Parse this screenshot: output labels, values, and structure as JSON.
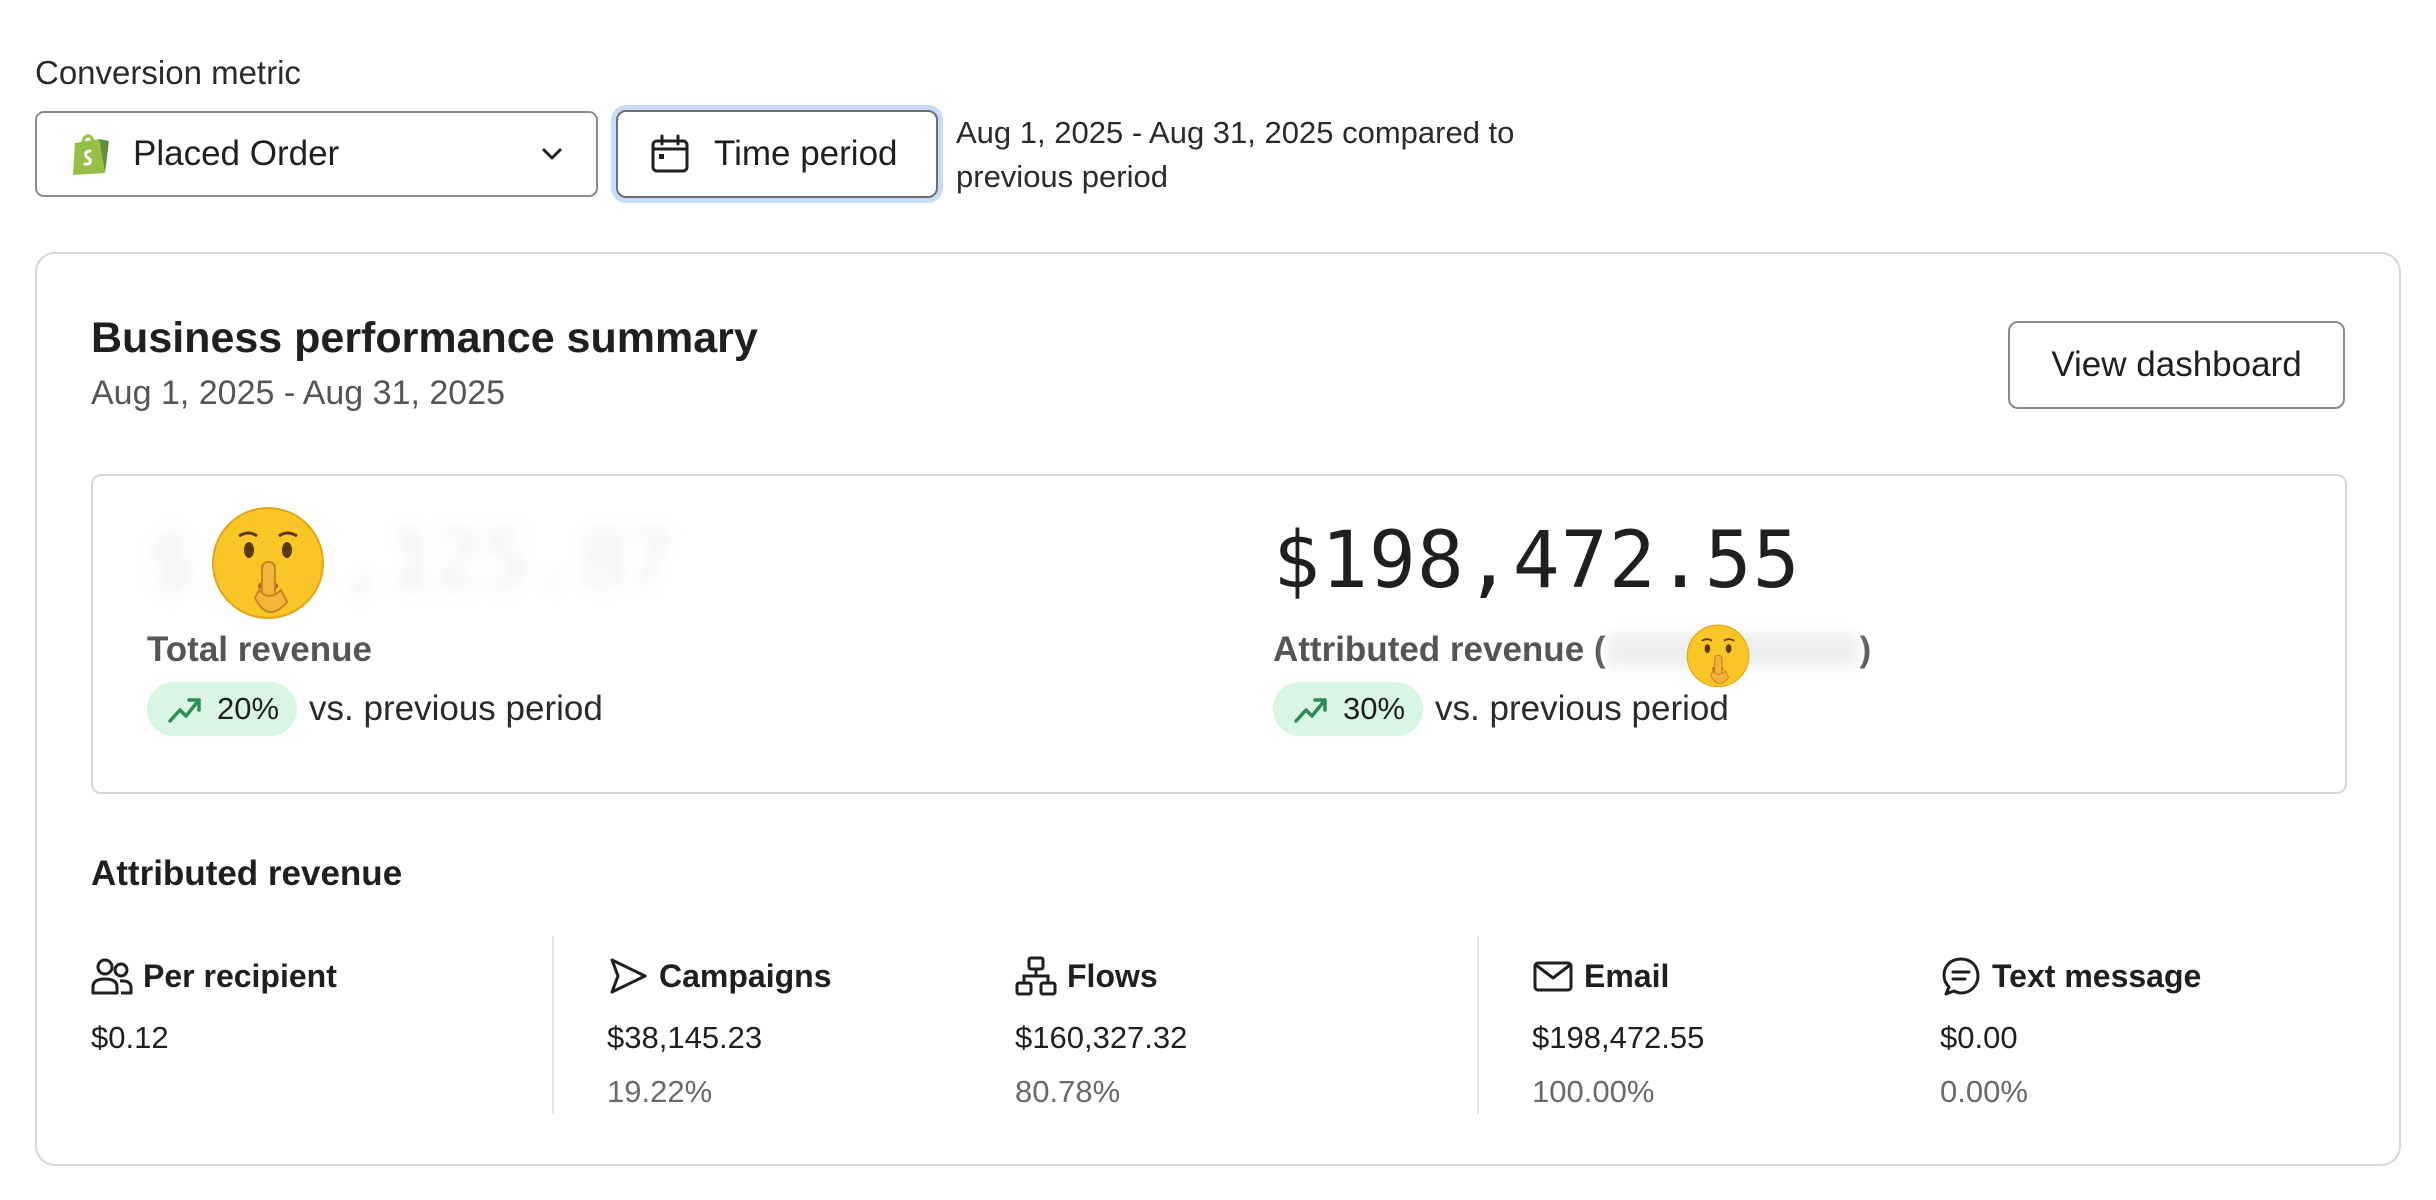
{
  "conversion_metric": {
    "label": "Conversion metric",
    "selected": "Placed Order",
    "selected_icon": "shopify-bag-icon"
  },
  "time_period": {
    "button_label": "Time period",
    "range_text": "Aug 1, 2025 - Aug 31, 2025 compared to previous period"
  },
  "summary": {
    "title": "Business performance summary",
    "subtitle": "Aug 1, 2025 - Aug 31, 2025",
    "view_button": "View dashboard",
    "total_revenue": {
      "value": "$...,125.87",
      "label": "Total revenue",
      "change": "20%",
      "change_text": "vs. previous period",
      "redacted": true
    },
    "attributed_revenue": {
      "value": "$198,472.55",
      "label_prefix": "Attributed revenue (",
      "label_suffix": ")",
      "change": "30%",
      "change_text": "vs. previous period"
    },
    "accent_color": "#d9f5e4",
    "trend_color": "#2e8b57"
  },
  "attributed_section": {
    "title": "Attributed revenue",
    "metrics": [
      {
        "icon": "people-icon",
        "name": "Per recipient",
        "value": "$0.12",
        "pct": ""
      },
      {
        "icon": "send-icon",
        "name": "Campaigns",
        "value": "$38,145.23",
        "pct": "19.22%"
      },
      {
        "icon": "flow-icon",
        "name": "Flows",
        "value": "$160,327.32",
        "pct": "80.78%"
      },
      {
        "icon": "mail-icon",
        "name": "Email",
        "value": "$198,472.55",
        "pct": "100.00%"
      },
      {
        "icon": "chat-icon",
        "name": "Text message",
        "value": "$0.00",
        "pct": "0.00%"
      }
    ]
  }
}
